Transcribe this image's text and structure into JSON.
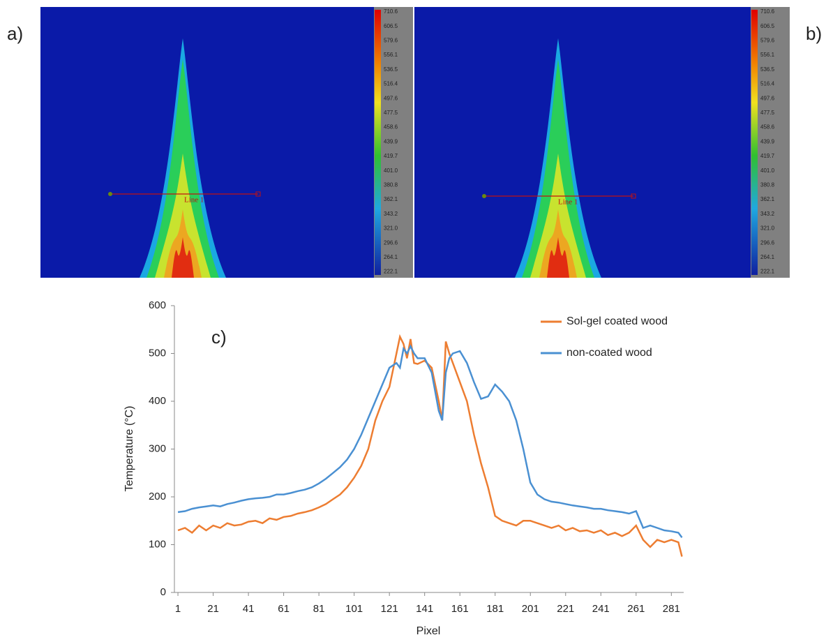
{
  "thermal_images": [
    {
      "label": "a)",
      "line_label": "Line 1",
      "colorbar": [
        "710.6",
        "606.5",
        "579.6",
        "556.1",
        "536.5",
        "516.4",
        "497.6",
        "477.5",
        "458.6",
        "439.9",
        "419.7",
        "401.0",
        "380.8",
        "362.1",
        "343.2",
        "321.0",
        "296.6",
        "264.1",
        "222.1"
      ]
    },
    {
      "label": "b)",
      "line_label": "Line 1",
      "colorbar": [
        "710.6",
        "606.5",
        "579.6",
        "556.1",
        "536.5",
        "516.4",
        "497.6",
        "477.5",
        "458.6",
        "439.9",
        "419.7",
        "401.0",
        "380.8",
        "362.1",
        "343.2",
        "321.0",
        "296.6",
        "264.1",
        "222.1"
      ]
    }
  ],
  "chart_data": {
    "type": "line",
    "annotation": "c)",
    "x_label": "Pixel",
    "y_label": "Temperature (°C)",
    "legend": "top-right",
    "grid": false,
    "xlim": [
      -1,
      288
    ],
    "ylim": [
      0,
      600
    ],
    "xticks": [
      1,
      21,
      41,
      61,
      81,
      101,
      121,
      141,
      161,
      181,
      201,
      221,
      241,
      261,
      281
    ],
    "yticks": [
      0,
      100,
      200,
      300,
      400,
      500,
      600
    ],
    "x": [
      1,
      5,
      9,
      13,
      17,
      21,
      25,
      29,
      33,
      37,
      41,
      45,
      49,
      53,
      57,
      61,
      65,
      69,
      73,
      77,
      81,
      85,
      89,
      93,
      97,
      101,
      105,
      109,
      113,
      117,
      121,
      125,
      127,
      129,
      131,
      133,
      135,
      137,
      141,
      145,
      149,
      151,
      153,
      155,
      157,
      161,
      165,
      169,
      173,
      177,
      181,
      185,
      189,
      193,
      197,
      201,
      205,
      209,
      213,
      217,
      221,
      225,
      229,
      233,
      237,
      241,
      245,
      249,
      253,
      257,
      261,
      265,
      269,
      273,
      277,
      281,
      285,
      287
    ],
    "series": [
      {
        "name": "Sol-gel coated wood",
        "color": "#ed7d31",
        "values": [
          130,
          135,
          125,
          140,
          130,
          140,
          135,
          145,
          140,
          142,
          148,
          150,
          145,
          155,
          152,
          158,
          160,
          165,
          168,
          172,
          178,
          185,
          195,
          205,
          220,
          240,
          265,
          300,
          360,
          400,
          430,
          500,
          535,
          520,
          490,
          530,
          480,
          478,
          485,
          470,
          400,
          360,
          525,
          500,
          480,
          440,
          400,
          330,
          270,
          220,
          160,
          150,
          145,
          140,
          150,
          150,
          145,
          140,
          135,
          140,
          130,
          135,
          128,
          130,
          125,
          130,
          120,
          125,
          118,
          125,
          140,
          110,
          95,
          110,
          105,
          110,
          105,
          75
        ]
      },
      {
        "name": "non-coated wood",
        "color": "#4a90d2",
        "values": [
          168,
          170,
          175,
          178,
          180,
          182,
          180,
          185,
          188,
          192,
          195,
          197,
          198,
          200,
          205,
          205,
          208,
          212,
          215,
          220,
          228,
          238,
          250,
          262,
          278,
          300,
          330,
          365,
          400,
          435,
          470,
          480,
          470,
          510,
          500,
          515,
          500,
          490,
          490,
          460,
          380,
          360,
          460,
          490,
          500,
          505,
          480,
          440,
          405,
          410,
          435,
          420,
          400,
          360,
          300,
          230,
          205,
          195,
          190,
          188,
          185,
          182,
          180,
          178,
          175,
          175,
          172,
          170,
          168,
          165,
          170,
          135,
          140,
          135,
          130,
          128,
          125,
          115
        ]
      }
    ]
  }
}
